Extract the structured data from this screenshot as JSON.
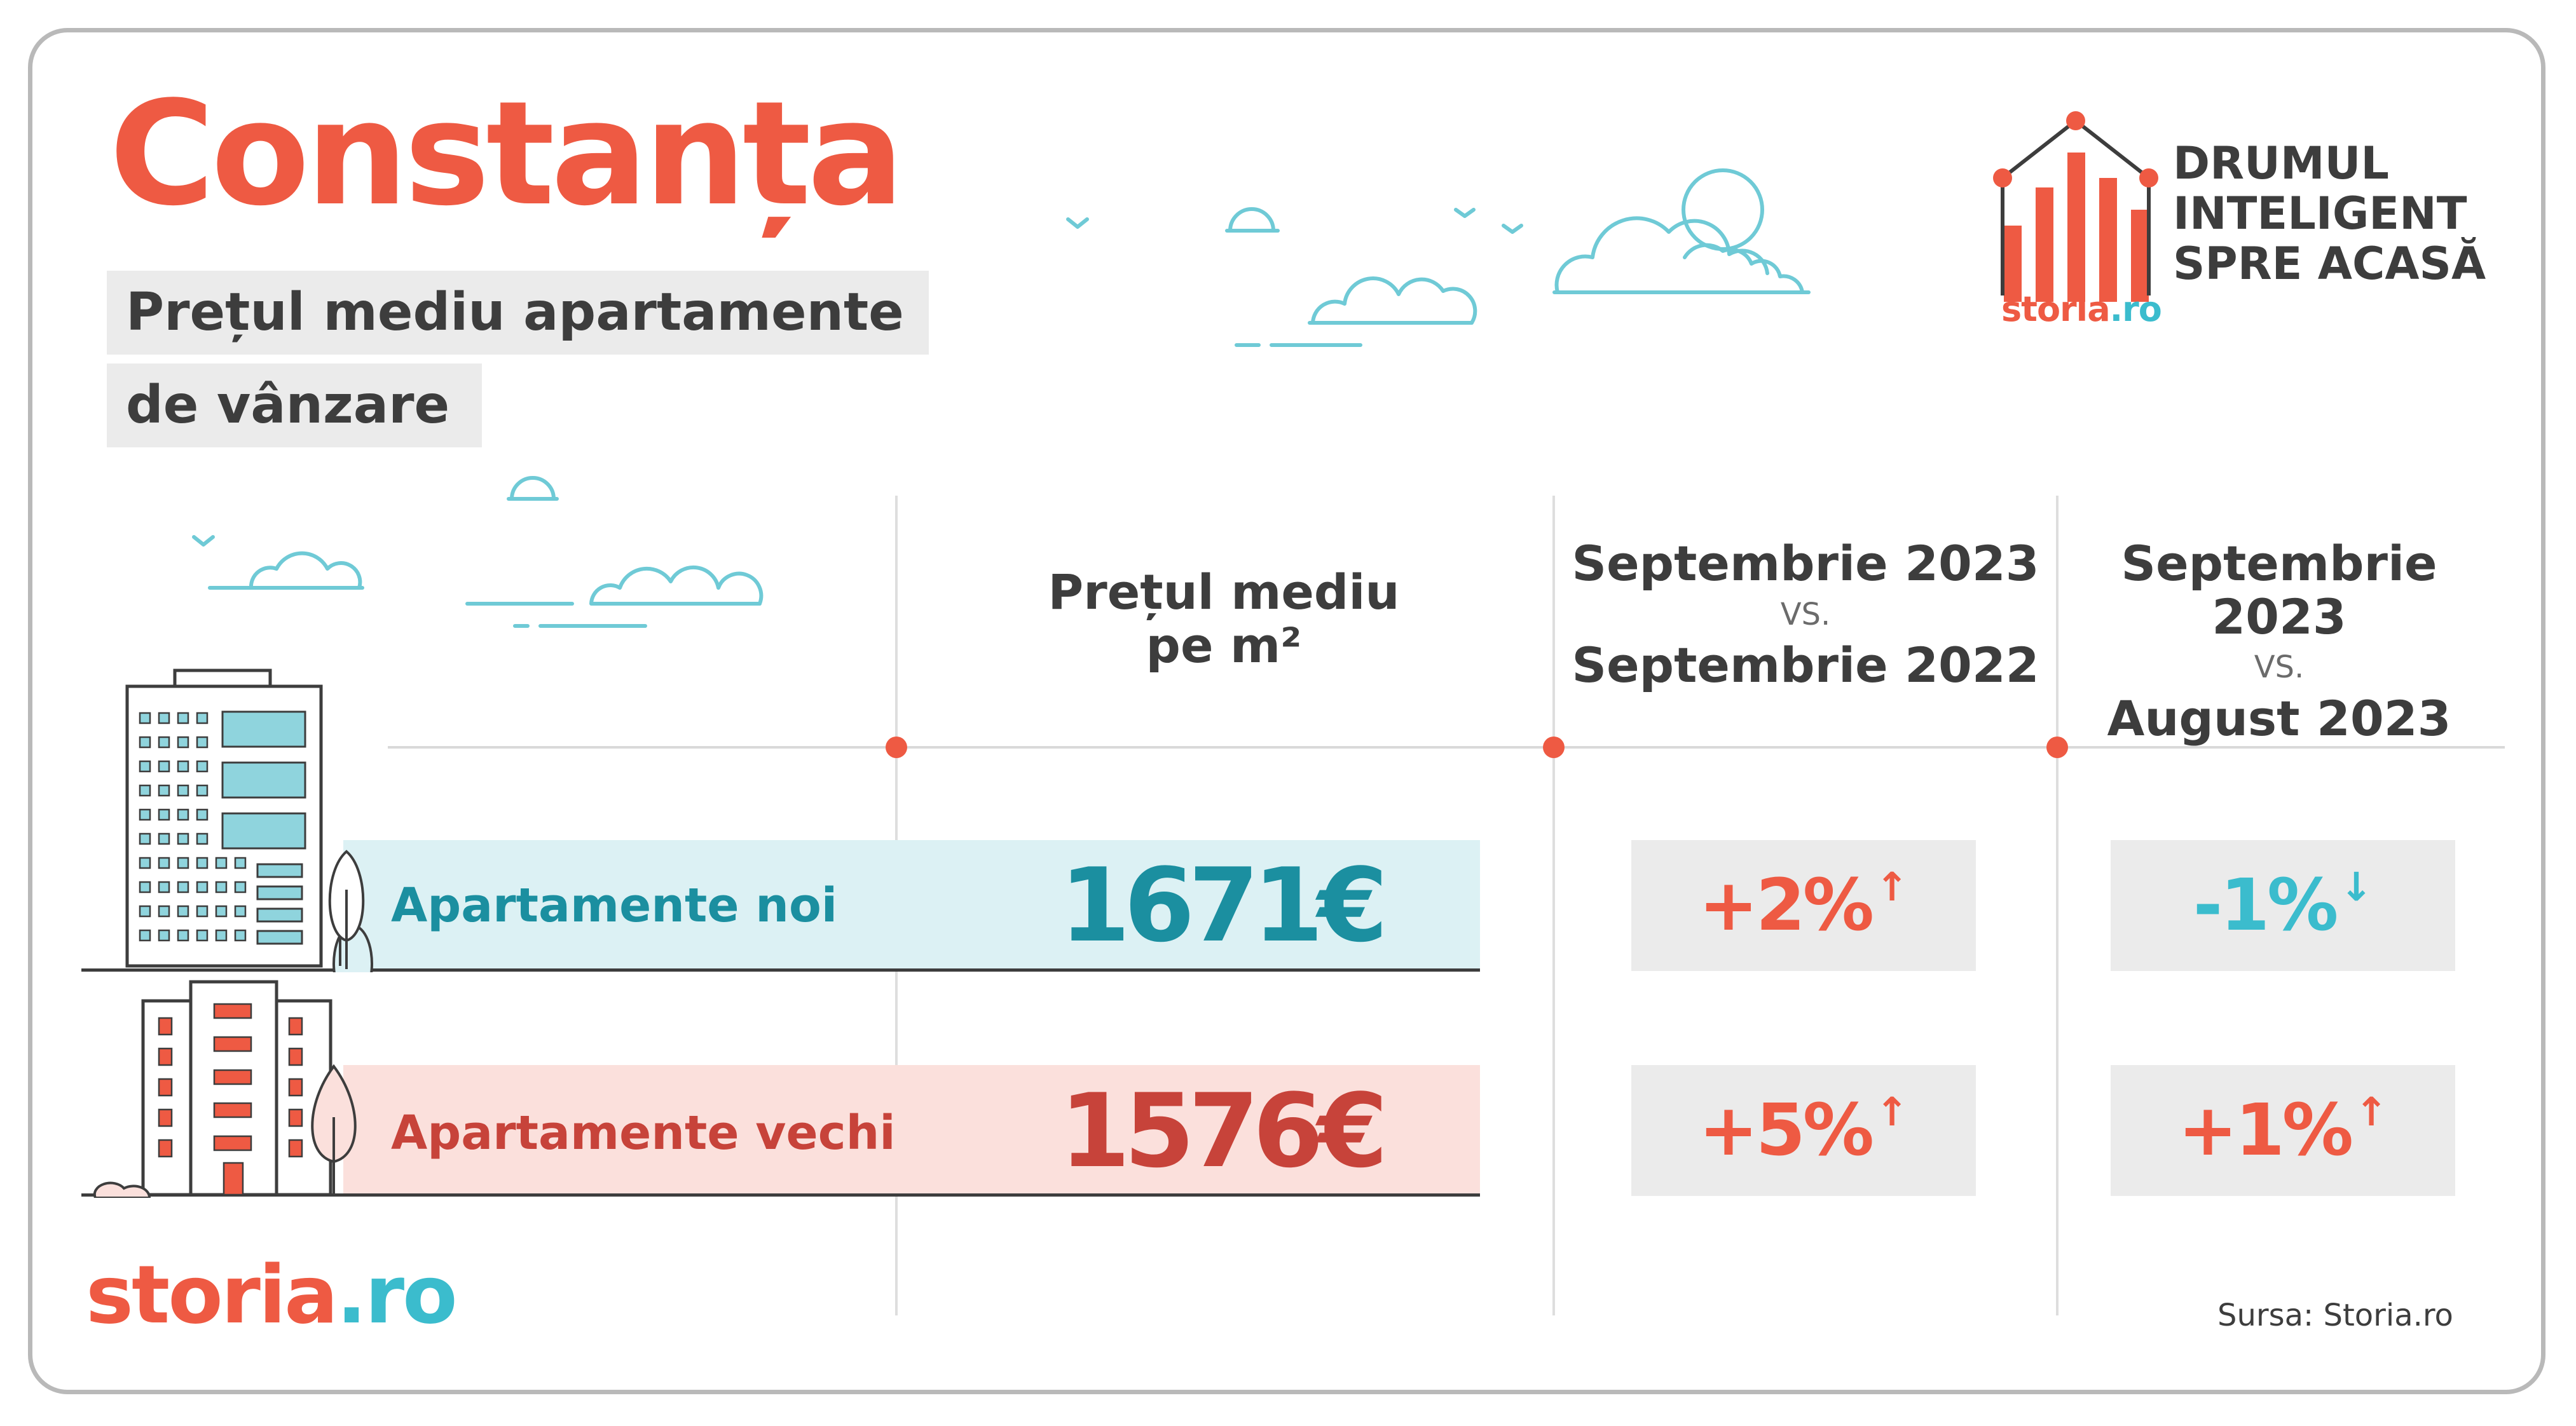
{
  "title": "Constanța",
  "subtitle_line1": "Prețul mediu apartamente",
  "subtitle_line2": "de vânzare",
  "brand": {
    "slogan_line1": "DRUMUL",
    "slogan_line2": "INTELIGENT",
    "slogan_line3": "SPRE ACASĂ",
    "logo_small_a": "storia",
    "logo_small_b": ".ro",
    "logo_a": "storia",
    "logo_b": ".ro"
  },
  "columns": {
    "price_line1": "Prețul mediu",
    "price_line2": "pe m²",
    "yoy_top": "Septembrie 2023",
    "yoy_vs": "VS.",
    "yoy_bottom": "Septembrie 2022",
    "mom_top": "Septembrie 2023",
    "mom_vs": "VS.",
    "mom_bottom": "August 2023"
  },
  "source": "Sursa:  Storia.ro",
  "colors": {
    "accent_red": "#ee5a43",
    "teal": "#1b8fa0",
    "light_blue_band": "#dcf1f4",
    "light_pink_band": "#fbe0dc",
    "dark_red": "#c7433a",
    "grey_box": "#ebebeb"
  },
  "icons": [
    "clouds-illustration",
    "birds-illustration",
    "new-building-illustration",
    "old-building-illustration",
    "tree-illustration",
    "house-chart-logo-icon",
    "arrow-up-icon",
    "arrow-down-icon"
  ],
  "chart_data": {
    "type": "table",
    "columns": [
      "Prețul mediu pe m²",
      "Septembrie 2023 VS. Septembrie 2022",
      "Septembrie 2023 VS. August 2023"
    ],
    "rows": [
      {
        "label": "Apartamente noi",
        "price": "1671€",
        "price_value": 1671,
        "yoy": "+2%",
        "yoy_value": 2,
        "yoy_dir": "up",
        "mom": "-1%",
        "mom_value": -1,
        "mom_dir": "down"
      },
      {
        "label": "Apartamente vechi",
        "price": "1576€",
        "price_value": 1576,
        "yoy": "+5%",
        "yoy_value": 5,
        "yoy_dir": "up",
        "mom": "+1%",
        "mom_value": 1,
        "mom_dir": "up"
      }
    ]
  }
}
